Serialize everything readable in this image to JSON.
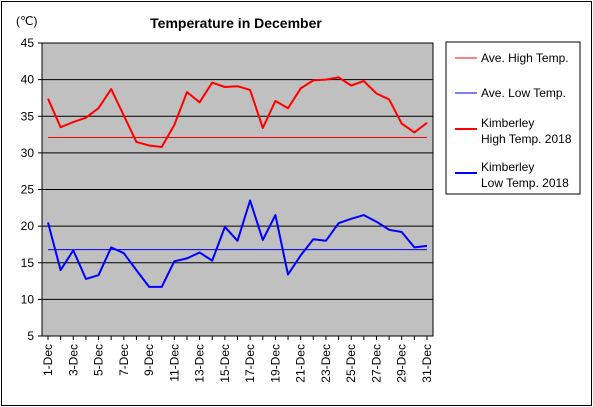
{
  "chart_data": {
    "type": "line",
    "title": "Temperature in December",
    "unit_label": "(℃)",
    "ylim": [
      5,
      45
    ],
    "yticks": [
      5,
      10,
      15,
      20,
      25,
      30,
      35,
      40,
      45
    ],
    "categories": [
      "1-Dec",
      "2-Dec",
      "3-Dec",
      "4-Dec",
      "5-Dec",
      "6-Dec",
      "7-Dec",
      "8-Dec",
      "9-Dec",
      "10-Dec",
      "11-Dec",
      "12-Dec",
      "13-Dec",
      "14-Dec",
      "15-Dec",
      "16-Dec",
      "17-Dec",
      "18-Dec",
      "19-Dec",
      "20-Dec",
      "21-Dec",
      "22-Dec",
      "23-Dec",
      "24-Dec",
      "25-Dec",
      "26-Dec",
      "27-Dec",
      "28-Dec",
      "29-Dec",
      "30-Dec",
      "31-Dec"
    ],
    "shown_tick_labels": [
      "1-Dec",
      "3-Dec",
      "5-Dec",
      "7-Dec",
      "9-Dec",
      "11-Dec",
      "13-Dec",
      "15-Dec",
      "17-Dec",
      "19-Dec",
      "21-Dec",
      "23-Dec",
      "25-Dec",
      "27-Dec",
      "29-Dec",
      "31-Dec"
    ],
    "plot_background": "#c0c0c0",
    "grid": true,
    "legend_position": "right",
    "series": [
      {
        "name": "Ave. High Temp.",
        "color": "#ff0000",
        "line_width": "thin",
        "values": [
          32.1,
          32.1,
          32.1,
          32.1,
          32.1,
          32.1,
          32.1,
          32.1,
          32.1,
          32.1,
          32.1,
          32.1,
          32.1,
          32.1,
          32.1,
          32.1,
          32.1,
          32.1,
          32.1,
          32.1,
          32.1,
          32.1,
          32.1,
          32.1,
          32.1,
          32.1,
          32.1,
          32.1,
          32.1,
          32.1,
          32.1
        ]
      },
      {
        "name": "Ave. Low Temp.",
        "color": "#0000ff",
        "line_width": "thin",
        "values": [
          16.8,
          16.8,
          16.8,
          16.8,
          16.8,
          16.8,
          16.8,
          16.8,
          16.8,
          16.8,
          16.8,
          16.8,
          16.8,
          16.8,
          16.8,
          16.8,
          16.8,
          16.8,
          16.8,
          16.8,
          16.8,
          16.8,
          16.8,
          16.8,
          16.8,
          16.8,
          16.8,
          16.8,
          16.8,
          16.8,
          16.8
        ]
      },
      {
        "name": "Kimberley High Temp. 2018",
        "legend_lines": [
          "Kimberley",
          "High Temp. 2018"
        ],
        "color": "#ff0000",
        "line_width": "thick",
        "values": [
          37.4,
          33.5,
          34.2,
          34.8,
          36.1,
          38.7,
          35.1,
          31.5,
          31.0,
          30.8,
          33.8,
          38.3,
          36.9,
          39.6,
          39.0,
          39.1,
          38.6,
          33.4,
          37.1,
          36.1,
          38.8,
          39.9,
          40.0,
          40.3,
          39.2,
          39.8,
          38.1,
          37.3,
          34.0,
          32.8,
          34.1
        ]
      },
      {
        "name": "Kimberley Low Temp. 2018",
        "legend_lines": [
          "Kimberley",
          "Low Temp. 2018"
        ],
        "color": "#0000ff",
        "line_width": "thick",
        "values": [
          20.5,
          14.0,
          16.7,
          12.8,
          13.3,
          17.1,
          16.3,
          14.0,
          11.7,
          11.7,
          15.2,
          15.6,
          16.4,
          15.3,
          19.9,
          18.0,
          23.5,
          18.1,
          21.5,
          13.4,
          16.0,
          18.2,
          18.0,
          20.4,
          21.0,
          21.5,
          20.6,
          19.5,
          19.2,
          17.1,
          17.3
        ]
      }
    ]
  }
}
